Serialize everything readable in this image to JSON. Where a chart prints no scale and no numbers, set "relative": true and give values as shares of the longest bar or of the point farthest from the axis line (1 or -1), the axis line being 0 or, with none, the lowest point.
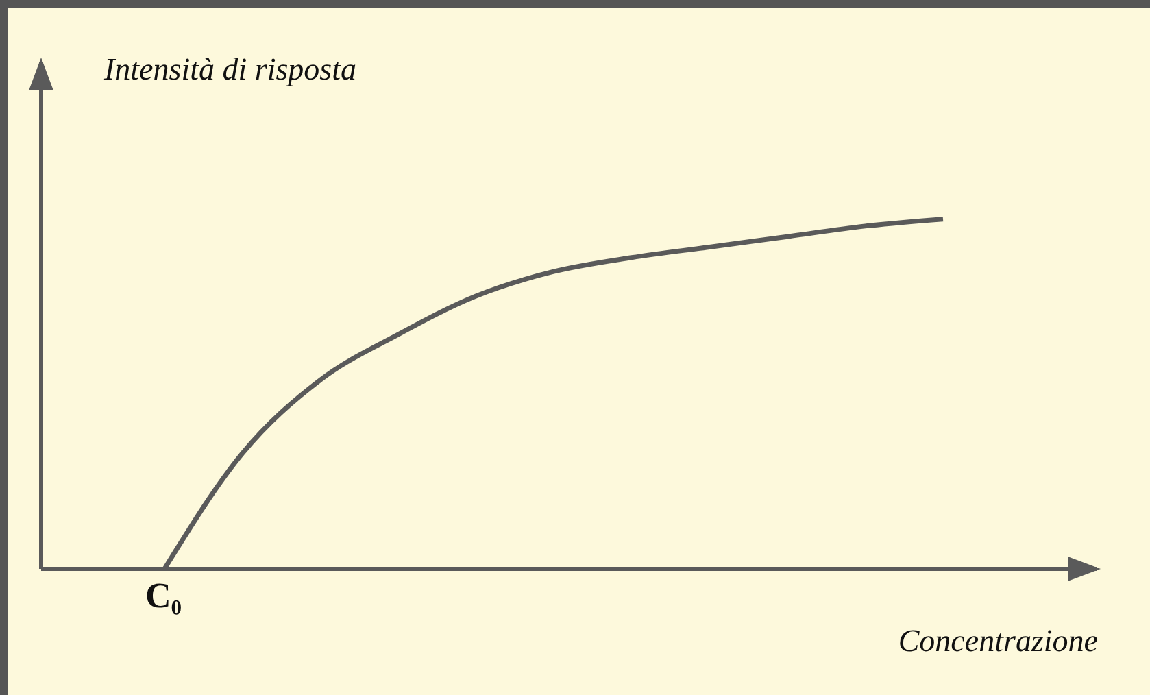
{
  "chart_data": {
    "type": "line",
    "relative": true,
    "xlabel": "Concentrazione",
    "ylabel": "Intensità di risposta",
    "annotations": [
      "C₀"
    ],
    "categories": [
      null,
      null,
      null,
      null,
      null,
      null,
      null,
      null,
      null,
      null,
      null
    ],
    "series": [
      {
        "color": "#5a5a5a",
        "values": [
          0,
          0.33,
          0.54,
          0.67,
          0.78,
          0.85,
          0.89,
          0.92,
          0.95,
          0.98,
          1
        ]
      }
    ],
    "marker": "none",
    "line_style": "solid",
    "grid": false,
    "legend": false
  }
}
